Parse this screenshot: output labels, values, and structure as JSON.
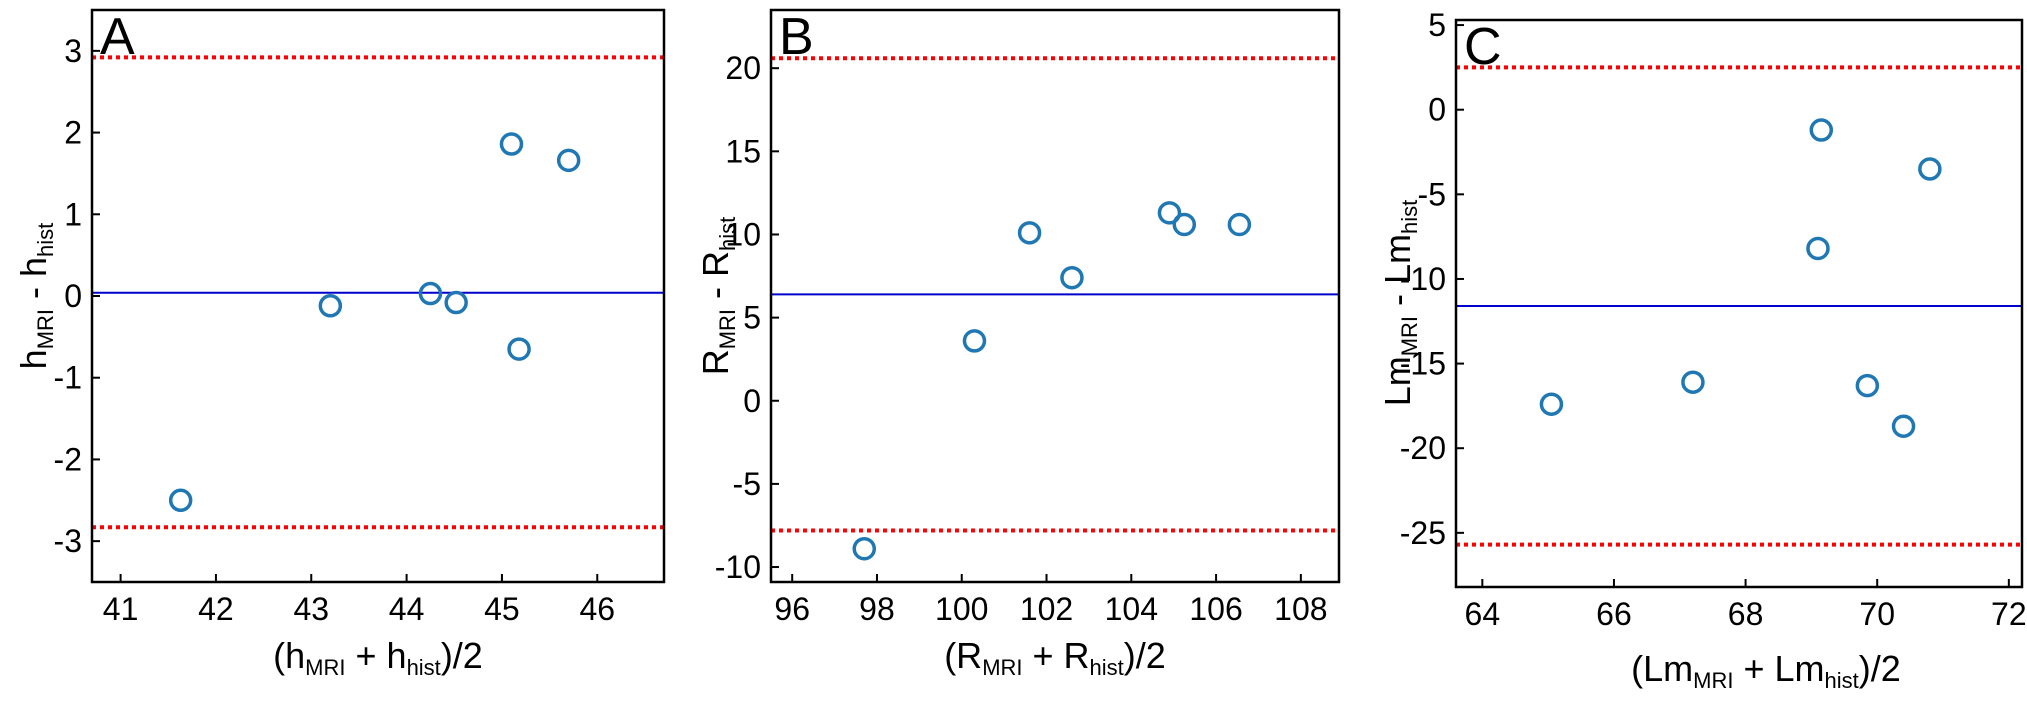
{
  "colors": {
    "marker": "#1f77b4",
    "mean_line": "#0000cc",
    "limits_line": "#ff0000",
    "axes": "#000000"
  },
  "chart_data": [
    {
      "type": "scatter",
      "panel_label": "A",
      "title": "",
      "xlabel": {
        "pre": "(h",
        "sub1": "MRI",
        "mid": " + h",
        "sub2": "hist",
        "post": ")/2"
      },
      "ylabel": {
        "pre": "h",
        "sub1": "MRI",
        "mid": " - h",
        "sub2": "hist",
        "post": ""
      },
      "xlim": [
        40.7,
        46.7
      ],
      "ylim": [
        -3.5,
        3.5
      ],
      "xticks": [
        41,
        42,
        43,
        44,
        45,
        46
      ],
      "yticks": [
        -3,
        -2,
        -1,
        0,
        1,
        2,
        3
      ],
      "xtick_labels": [
        "41",
        "42",
        "43",
        "44",
        "45",
        "46"
      ],
      "ytick_labels": [
        "-3",
        "-2",
        "-1",
        "0",
        "1",
        "2",
        "3"
      ],
      "mean": 0.04,
      "upper_limit": 2.92,
      "lower_limit": -2.83,
      "grid": false,
      "points": [
        {
          "x": 41.63,
          "y": -2.5
        },
        {
          "x": 43.2,
          "y": -0.12
        },
        {
          "x": 44.25,
          "y": 0.03
        },
        {
          "x": 44.52,
          "y": -0.08
        },
        {
          "x": 45.1,
          "y": 1.86
        },
        {
          "x": 45.18,
          "y": -0.65
        },
        {
          "x": 45.7,
          "y": 1.66
        }
      ]
    },
    {
      "type": "scatter",
      "panel_label": "B",
      "title": "",
      "xlabel": {
        "pre": "(R",
        "sub1": "MRI",
        "mid": " + R",
        "sub2": "hist",
        "post": ")/2"
      },
      "ylabel": {
        "pre": "R",
        "sub1": "MRI",
        "mid": " - R",
        "sub2": "hist",
        "post": ""
      },
      "xlim": [
        95.5,
        108.9
      ],
      "ylim": [
        -10.9,
        23.5
      ],
      "xticks": [
        96,
        98,
        100,
        102,
        104,
        106,
        108
      ],
      "yticks": [
        -10,
        -5,
        0,
        5,
        10,
        15,
        20
      ],
      "xtick_labels": [
        "96",
        "98",
        "100",
        "102",
        "104",
        "106",
        "108"
      ],
      "ytick_labels": [
        "-10",
        "-5",
        "0",
        "5",
        "10",
        "15",
        "20"
      ],
      "mean": 6.4,
      "upper_limit": 20.6,
      "lower_limit": -7.8,
      "grid": false,
      "points": [
        {
          "x": 97.7,
          "y": -8.9
        },
        {
          "x": 100.3,
          "y": 3.6
        },
        {
          "x": 101.6,
          "y": 10.1
        },
        {
          "x": 102.6,
          "y": 7.4
        },
        {
          "x": 104.9,
          "y": 11.3
        },
        {
          "x": 105.25,
          "y": 10.6
        },
        {
          "x": 106.55,
          "y": 10.6
        }
      ]
    },
    {
      "type": "scatter",
      "panel_label": "C",
      "title": "",
      "xlabel": {
        "pre": "(Lm",
        "sub1": "MRI",
        "mid": " + Lm",
        "sub2": "hist",
        "post": ")/2"
      },
      "ylabel": {
        "pre": "Lm",
        "sub1": "MRI",
        "mid": " - Lm",
        "sub2": "hist",
        "post": ""
      },
      "xlim": [
        63.6,
        72.2
      ],
      "ylim": [
        -28.2,
        5.3
      ],
      "xticks": [
        64,
        66,
        68,
        70,
        72
      ],
      "yticks": [
        -25,
        -20,
        -15,
        -10,
        -5,
        0,
        5
      ],
      "xtick_labels": [
        "64",
        "66",
        "68",
        "70",
        "72"
      ],
      "ytick_labels": [
        "-25",
        "-20",
        "-15",
        "-10",
        "-5",
        "0",
        "5"
      ],
      "mean": -11.6,
      "upper_limit": 2.5,
      "lower_limit": -25.7,
      "grid": false,
      "points": [
        {
          "x": 65.05,
          "y": -17.4
        },
        {
          "x": 67.2,
          "y": -16.1
        },
        {
          "x": 69.1,
          "y": -8.2
        },
        {
          "x": 69.15,
          "y": -1.2
        },
        {
          "x": 69.85,
          "y": -16.3
        },
        {
          "x": 70.4,
          "y": -18.7
        },
        {
          "x": 70.8,
          "y": -3.5
        }
      ]
    }
  ]
}
